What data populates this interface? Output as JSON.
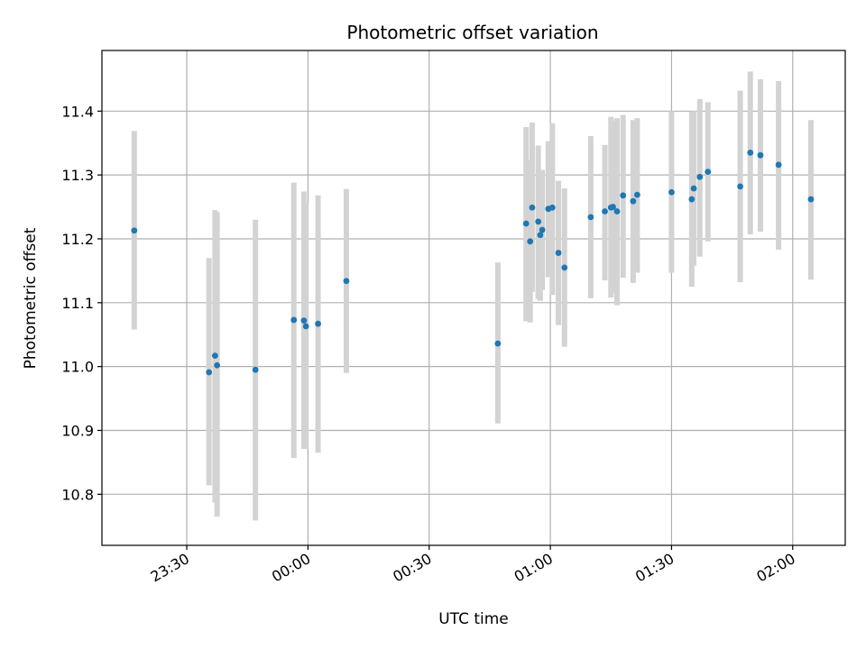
{
  "chart_data": {
    "type": "scatter",
    "title": "Photometric offset variation",
    "xlabel": "UTC time",
    "ylabel": "Photometric offset",
    "x_ticks": [
      "23:30",
      "00:00",
      "00:30",
      "01:00",
      "01:30",
      "02:00"
    ],
    "y_ticks": [
      "10.8",
      "10.9",
      "11.0",
      "11.1",
      "11.2",
      "11.3",
      "11.4"
    ],
    "xlim": [
      "23:09",
      "02:13"
    ],
    "ylim": [
      10.72,
      11.495
    ],
    "grid": true,
    "colors": {
      "points": "#1f77b4",
      "error_bars": "#d3d3d3",
      "grid": "#b0b0b0"
    },
    "series": [
      {
        "points": [
          {
            "x": "23:17:00",
            "y": 11.213,
            "ylow": 11.058,
            "yhigh": 11.369
          },
          {
            "x": "23:35:30",
            "y": 10.991,
            "ylow": 10.814,
            "yhigh": 11.17
          },
          {
            "x": "23:37:00",
            "y": 11.017,
            "ylow": 10.787,
            "yhigh": 11.245
          },
          {
            "x": "23:37:30",
            "y": 11.002,
            "ylow": 10.765,
            "yhigh": 11.242
          },
          {
            "x": "23:47:00",
            "y": 10.995,
            "ylow": 10.759,
            "yhigh": 11.23
          },
          {
            "x": "23:56:30",
            "y": 11.073,
            "ylow": 10.857,
            "yhigh": 11.288
          },
          {
            "x": "23:59:00",
            "y": 11.072,
            "ylow": 10.871,
            "yhigh": 11.274
          },
          {
            "x": "23:59:30",
            "y": 11.063,
            "ylow": 10.871,
            "yhigh": 11.255
          },
          {
            "x": "00:02:30",
            "y": 11.067,
            "ylow": 10.865,
            "yhigh": 11.268
          },
          {
            "x": "00:09:30",
            "y": 11.134,
            "ylow": 10.99,
            "yhigh": 11.278
          },
          {
            "x": "00:47:00",
            "y": 11.036,
            "ylow": 10.911,
            "yhigh": 11.163
          },
          {
            "x": "00:54:00",
            "y": 11.224,
            "ylow": 11.071,
            "yhigh": 11.375
          },
          {
            "x": "00:55:00",
            "y": 11.196,
            "ylow": 11.069,
            "yhigh": 11.323
          },
          {
            "x": "00:55:30",
            "y": 11.249,
            "ylow": 11.117,
            "yhigh": 11.382
          },
          {
            "x": "00:57:00",
            "y": 11.227,
            "ylow": 11.106,
            "yhigh": 11.346
          },
          {
            "x": "00:57:30",
            "y": 11.206,
            "ylow": 11.103,
            "yhigh": 11.308
          },
          {
            "x": "00:58:00",
            "y": 11.214,
            "ylow": 11.12,
            "yhigh": 11.308
          },
          {
            "x": "00:59:30",
            "y": 11.247,
            "ylow": 11.14,
            "yhigh": 11.353
          },
          {
            "x": "01:00:30",
            "y": 11.249,
            "ylow": 11.112,
            "yhigh": 11.381
          },
          {
            "x": "01:02:00",
            "y": 11.178,
            "ylow": 11.065,
            "yhigh": 11.291
          },
          {
            "x": "01:03:30",
            "y": 11.155,
            "ylow": 11.031,
            "yhigh": 11.279
          },
          {
            "x": "01:10:00",
            "y": 11.234,
            "ylow": 11.107,
            "yhigh": 11.361
          },
          {
            "x": "01:13:30",
            "y": 11.243,
            "ylow": 11.135,
            "yhigh": 11.347
          },
          {
            "x": "01:15:00",
            "y": 11.249,
            "ylow": 11.108,
            "yhigh": 11.391
          },
          {
            "x": "01:15:30",
            "y": 11.25,
            "ylow": 11.115,
            "yhigh": 11.385
          },
          {
            "x": "01:16:30",
            "y": 11.243,
            "ylow": 11.096,
            "yhigh": 11.389
          },
          {
            "x": "01:18:00",
            "y": 11.268,
            "ylow": 11.139,
            "yhigh": 11.394
          },
          {
            "x": "01:20:30",
            "y": 11.259,
            "ylow": 11.131,
            "yhigh": 11.386
          },
          {
            "x": "01:21:30",
            "y": 11.269,
            "ylow": 11.147,
            "yhigh": 11.389
          },
          {
            "x": "01:30:00",
            "y": 11.273,
            "ylow": 11.147,
            "yhigh": 11.4
          },
          {
            "x": "01:35:00",
            "y": 11.262,
            "ylow": 11.125,
            "yhigh": 11.399
          },
          {
            "x": "01:35:30",
            "y": 11.279,
            "ylow": 11.158,
            "yhigh": 11.4
          },
          {
            "x": "01:37:00",
            "y": 11.297,
            "ylow": 11.172,
            "yhigh": 11.419
          },
          {
            "x": "01:39:00",
            "y": 11.305,
            "ylow": 11.196,
            "yhigh": 11.414
          },
          {
            "x": "01:47:00",
            "y": 11.282,
            "ylow": 11.132,
            "yhigh": 11.432
          },
          {
            "x": "01:49:30",
            "y": 11.335,
            "ylow": 11.207,
            "yhigh": 11.462
          },
          {
            "x": "01:52:00",
            "y": 11.331,
            "ylow": 11.211,
            "yhigh": 11.45
          },
          {
            "x": "01:56:30",
            "y": 11.316,
            "ylow": 11.183,
            "yhigh": 11.447
          },
          {
            "x": "02:04:30",
            "y": 11.262,
            "ylow": 11.136,
            "yhigh": 11.386
          }
        ]
      }
    ]
  }
}
